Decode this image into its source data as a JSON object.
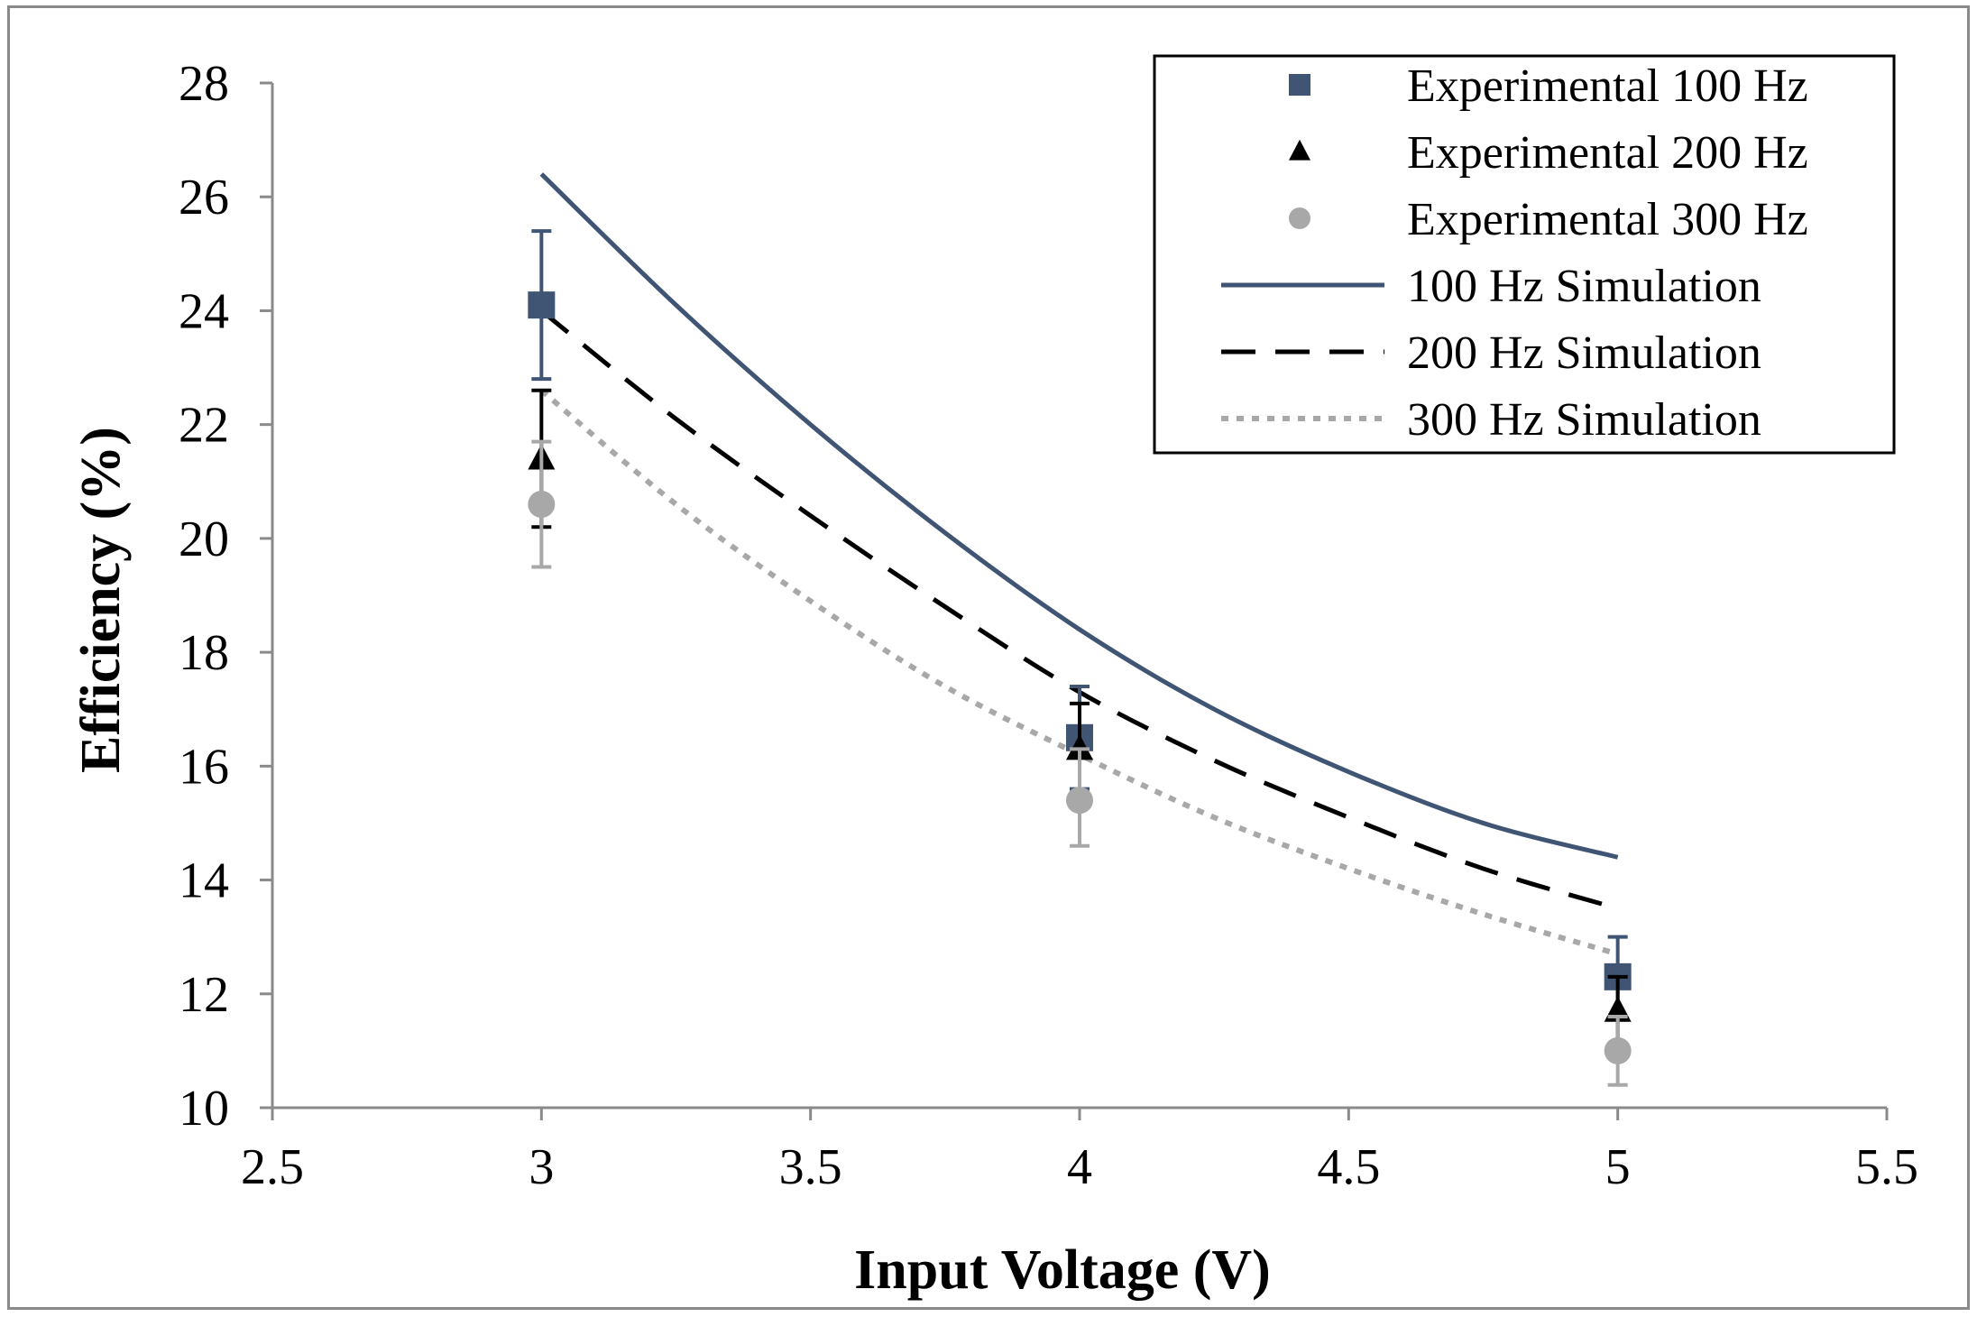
{
  "chart_data": {
    "type": "scatter",
    "title": "",
    "xlabel": "Input Voltage (V)",
    "ylabel": "Efficiency (%)",
    "xlim": [
      2.5,
      5.5
    ],
    "ylim": [
      10,
      28
    ],
    "xticks": [
      2.5,
      3,
      3.5,
      4,
      4.5,
      5,
      5.5
    ],
    "xtick_labels": [
      "2.5",
      "3",
      "3.5",
      "4",
      "4.5",
      "5",
      "5.5"
    ],
    "yticks": [
      10,
      12,
      14,
      16,
      18,
      20,
      22,
      24,
      26,
      28
    ],
    "ytick_labels": [
      "10",
      "12",
      "14",
      "16",
      "18",
      "20",
      "22",
      "24",
      "26",
      "28"
    ],
    "grid": false,
    "legend_position": "top-right",
    "series": [
      {
        "name": "Experimental 100 Hz",
        "kind": "marker",
        "marker": "square",
        "color": "#3f5573",
        "x": [
          3,
          4,
          5
        ],
        "y": [
          24.1,
          16.5,
          12.3
        ],
        "err_upper": [
          1.3,
          0.9,
          0.7
        ],
        "err_lower": [
          1.3,
          0.9,
          0.7
        ]
      },
      {
        "name": "Experimental 200 Hz",
        "kind": "marker",
        "marker": "triangle",
        "color": "#000000",
        "x": [
          3,
          4,
          5
        ],
        "y": [
          21.4,
          16.3,
          11.7
        ],
        "err_upper": [
          1.2,
          0.8,
          0.6
        ],
        "err_lower": [
          1.2,
          0.8,
          0.6
        ]
      },
      {
        "name": "Experimental 300 Hz",
        "kind": "marker",
        "marker": "circle",
        "color": "#a8a8a8",
        "x": [
          3,
          4,
          5
        ],
        "y": [
          20.6,
          15.4,
          11.0
        ],
        "err_upper": [
          1.1,
          0.9,
          0.6
        ],
        "err_lower": [
          1.1,
          0.8,
          0.6
        ]
      },
      {
        "name": "100 Hz Simulation",
        "kind": "line",
        "style": "solid",
        "color": "#3f5573",
        "x": [
          3.0,
          3.25,
          3.5,
          3.75,
          4.0,
          4.25,
          4.5,
          4.75,
          5.0
        ],
        "y": [
          26.4,
          24.1,
          22.0,
          20.1,
          18.4,
          17.0,
          15.9,
          15.0,
          14.4
        ]
      },
      {
        "name": "200 Hz Simulation",
        "kind": "line",
        "style": "dashed",
        "color": "#000000",
        "x": [
          3.0,
          3.25,
          3.5,
          3.75,
          4.0,
          4.25,
          4.5,
          4.75,
          5.0
        ],
        "y": [
          24.0,
          22.1,
          20.4,
          18.8,
          17.3,
          16.1,
          15.1,
          14.2,
          13.5
        ]
      },
      {
        "name": "300 Hz Simulation",
        "kind": "line",
        "style": "dotted",
        "color": "#a8a8a8",
        "x": [
          3.0,
          3.25,
          3.5,
          3.75,
          4.0,
          4.25,
          4.5,
          4.75,
          5.0
        ],
        "y": [
          22.6,
          20.6,
          18.9,
          17.4,
          16.2,
          15.1,
          14.2,
          13.4,
          12.7
        ]
      }
    ]
  }
}
